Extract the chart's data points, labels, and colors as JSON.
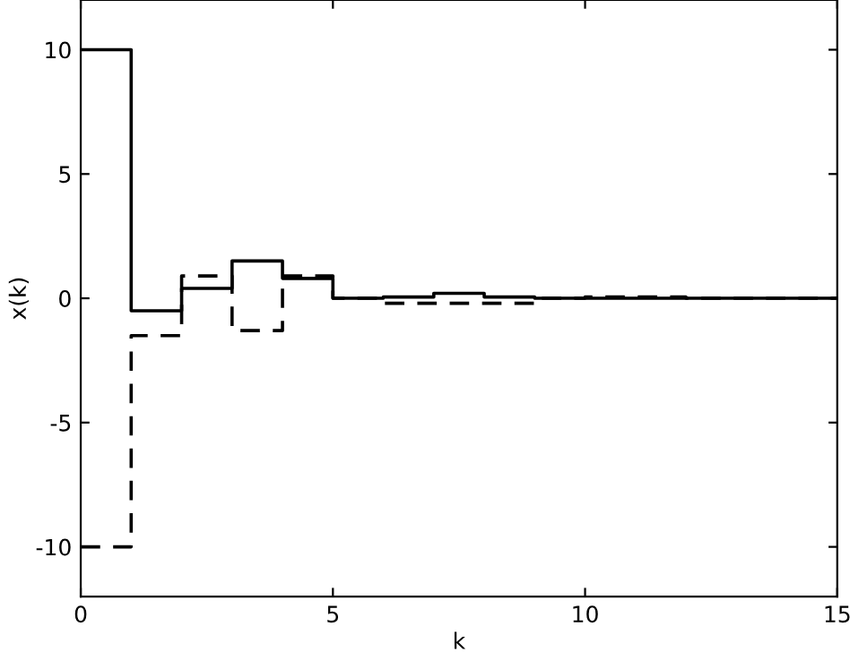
{
  "chart_data": {
    "type": "step",
    "xlabel": "k",
    "ylabel": "x(k)",
    "x": [
      0,
      1,
      2,
      3,
      4,
      5,
      6,
      7,
      8,
      9,
      10,
      11,
      12,
      13,
      14,
      15
    ],
    "series": [
      {
        "color": "#000000",
        "line_style": "solid",
        "values": [
          10,
          -0.5,
          0.4,
          1.5,
          0.8,
          0,
          0.05,
          0.2,
          0.05,
          0,
          0,
          0,
          0,
          0,
          0,
          0
        ]
      },
      {
        "color": "#000000",
        "line_style": "dashed",
        "values": [
          -10,
          -1.5,
          0.9,
          -1.3,
          0.9,
          0,
          -0.2,
          -0.2,
          -0.2,
          0,
          0.05,
          0.05,
          0,
          0,
          0,
          0
        ]
      }
    ],
    "xlim": [
      0,
      15
    ],
    "ylim": [
      -12,
      12
    ],
    "xticks": [
      0,
      5,
      10,
      15
    ],
    "yticks": [
      -10,
      -5,
      0,
      5,
      10
    ],
    "grid": false,
    "legend": false
  }
}
